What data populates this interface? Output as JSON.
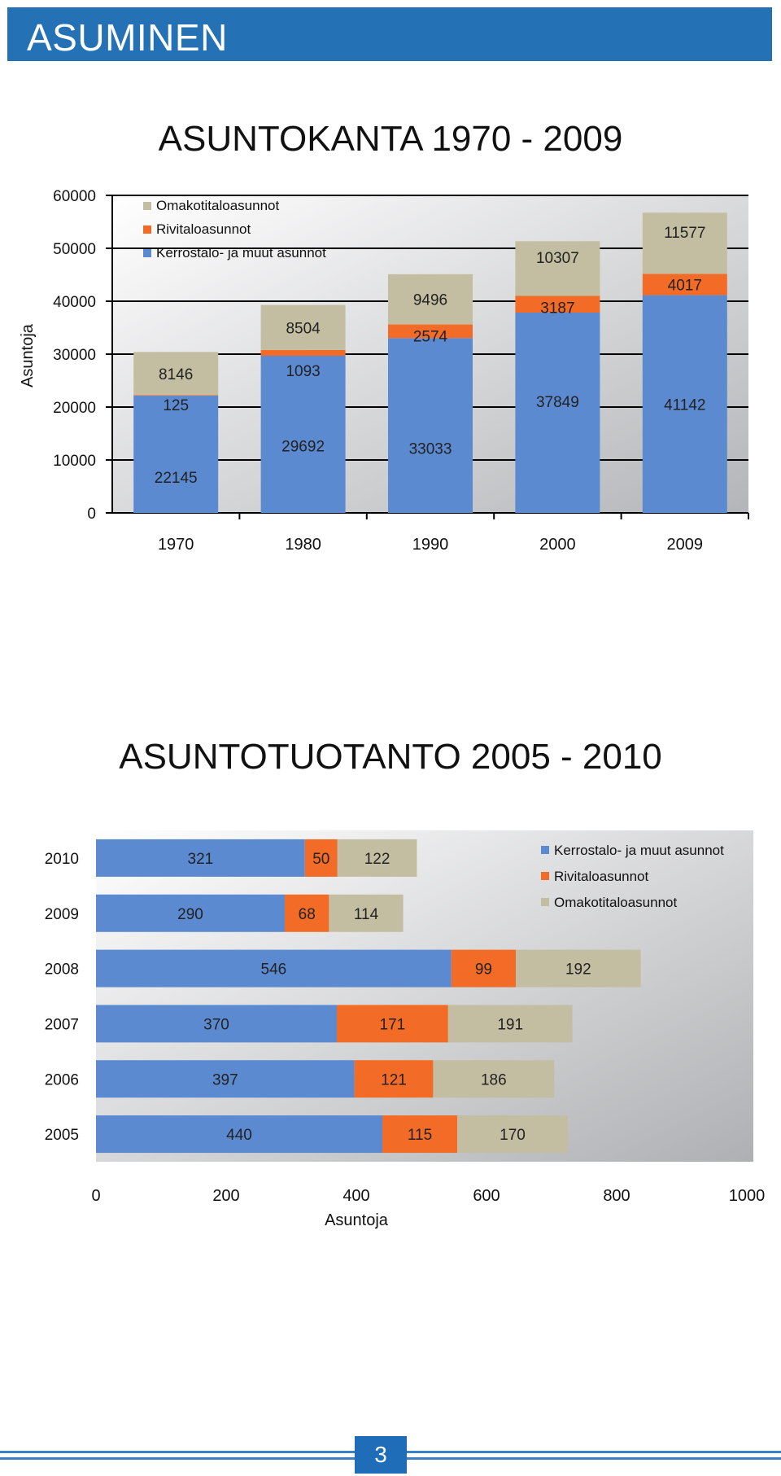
{
  "header": {
    "title": "ASUMINEN"
  },
  "page_number": "3",
  "colors": {
    "blue": "#5b8ad0",
    "orange": "#f26b27",
    "beige": "#c3bea1",
    "banner": "#2471b5"
  },
  "chart_data": [
    {
      "type": "bar",
      "orientation": "vertical",
      "stacked": true,
      "title": "ASUNTOKANTA 1970 - 2009",
      "xlabel": "",
      "ylabel": "Asuntoja",
      "categories": [
        "1970",
        "1980",
        "1990",
        "2000",
        "2009"
      ],
      "ylim": [
        0,
        60000
      ],
      "yticks": [
        "0",
        "10000",
        "20000",
        "30000",
        "40000",
        "50000",
        "60000"
      ],
      "legend_position": "top-left",
      "legend": [
        "Omakotitaloasunnot",
        "Rivitaloasunnot",
        "Kerrostalo- ja muut asunnot"
      ],
      "series": [
        {
          "name": "Kerrostalo- ja muut asunnot",
          "color": "#5b8ad0",
          "values": [
            22145,
            29692,
            33033,
            37849,
            41142
          ]
        },
        {
          "name": "Rivitaloasunnot",
          "color": "#f26b27",
          "values": [
            125,
            1093,
            2574,
            3187,
            4017
          ]
        },
        {
          "name": "Omakotitaloasunnot",
          "color": "#c3bea1",
          "values": [
            8146,
            8504,
            9496,
            10307,
            11577
          ]
        }
      ]
    },
    {
      "type": "bar",
      "orientation": "horizontal",
      "stacked": true,
      "title": "ASUNTOTUOTANTO 2005 - 2010",
      "xlabel": "Asuntoja",
      "ylabel": "",
      "categories": [
        "2010",
        "2009",
        "2008",
        "2007",
        "2006",
        "2005"
      ],
      "xlim": [
        0,
        1000
      ],
      "xticks": [
        "0",
        "200",
        "400",
        "600",
        "800",
        "1000"
      ],
      "legend_position": "top-right",
      "legend": [
        "Kerrostalo- ja muut asunnot",
        "Rivitaloasunnot",
        "Omakotitaloasunnot"
      ],
      "series": [
        {
          "name": "Kerrostalo- ja muut asunnot",
          "color": "#5b8ad0",
          "values": [
            321,
            290,
            546,
            370,
            397,
            440
          ]
        },
        {
          "name": "Rivitaloasunnot",
          "color": "#f26b27",
          "values": [
            50,
            68,
            99,
            171,
            121,
            115
          ]
        },
        {
          "name": "Omakotitaloasunnot",
          "color": "#c3bea1",
          "values": [
            122,
            114,
            192,
            191,
            186,
            170
          ]
        }
      ]
    }
  ]
}
